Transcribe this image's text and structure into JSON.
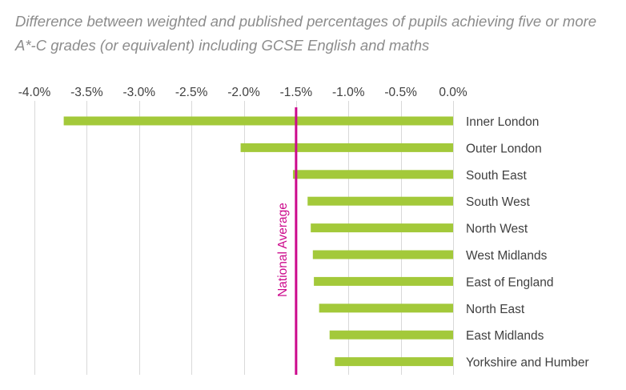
{
  "chart_data": {
    "type": "bar",
    "orientation": "horizontal",
    "title": "Difference between weighted and published percentages of pupils achieving five or more A*-C grades (or equivalent) including GCSE English and maths",
    "categories": [
      "Inner London",
      "Outer London",
      "South East",
      "South West",
      "North West",
      "West Midlands",
      "East of England",
      "North East",
      "East Midlands",
      "Yorkshire and Humber"
    ],
    "values": [
      -3.72,
      -2.03,
      -1.53,
      -1.39,
      -1.36,
      -1.34,
      -1.33,
      -1.28,
      -1.18,
      -1.13
    ],
    "xlim": [
      -4.0,
      0.0
    ],
    "x_ticks": [
      -4.0,
      -3.5,
      -3.0,
      -2.5,
      -2.0,
      -1.5,
      -1.0,
      -0.5,
      0.0
    ],
    "x_tick_labels": [
      "-4.0%",
      "-3.5%",
      "-3.0%",
      "-2.5%",
      "-2.0%",
      "-1.5%",
      "-1.0%",
      "-0.5%",
      "0.0%"
    ],
    "x_axis_position": "top",
    "category_labels_position": "right",
    "grid": "vertical",
    "reference_line": {
      "value": -1.5,
      "label": "National Average",
      "color": "#cc0a8c"
    },
    "bar_color": "#a3c93a",
    "grid_color": "#d9d9d9"
  }
}
